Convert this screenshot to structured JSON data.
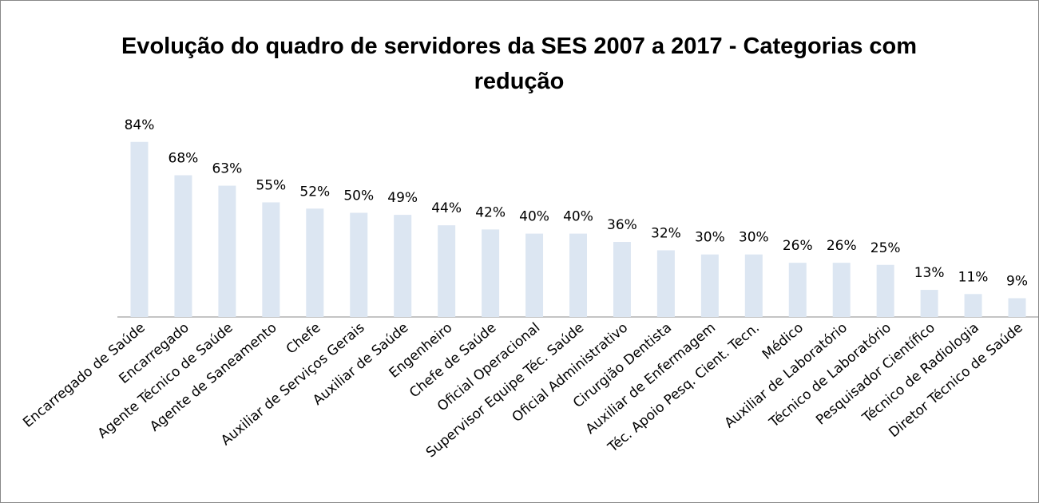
{
  "chart_data": {
    "type": "bar",
    "title": "Evolução do quadro de servidores da SES 2007 a 2017 - Categorias com redução",
    "categories": [
      "Encarregado de Saúde",
      "Encarregado",
      "Agente Técnico de Saúde",
      "Agente de Saneamento",
      "Chefe",
      "Auxiliar de Serviços Gerais",
      "Auxiliar de Saúde",
      "Engenheiro",
      "Chefe de Saúde",
      "Oficial Operacional",
      "Supervisor Equipe Téc. Saúde",
      "Oficial Administrativo",
      "Cirurgião Dentista",
      "Auxiliar de Enfermagem",
      "Téc. Apoio Pesq. Cient. Tecn.",
      "Médico",
      "Auxiliar de Laboratório",
      "Técnico de Laboratório",
      "Pesquisador Científico",
      "Técnico de Radiologia",
      "Diretor Técnico de Saúde"
    ],
    "values": [
      84,
      68,
      63,
      55,
      52,
      50,
      49,
      44,
      42,
      40,
      40,
      36,
      32,
      30,
      30,
      26,
      26,
      25,
      13,
      11,
      9
    ],
    "value_labels": [
      "84%",
      "68%",
      "63%",
      "55%",
      "52%",
      "50%",
      "49%",
      "44%",
      "42%",
      "40%",
      "40%",
      "36%",
      "32%",
      "30%",
      "30%",
      "26%",
      "26%",
      "25%",
      "13%",
      "11%",
      "9%"
    ],
    "color": "#dce6f2"
  }
}
